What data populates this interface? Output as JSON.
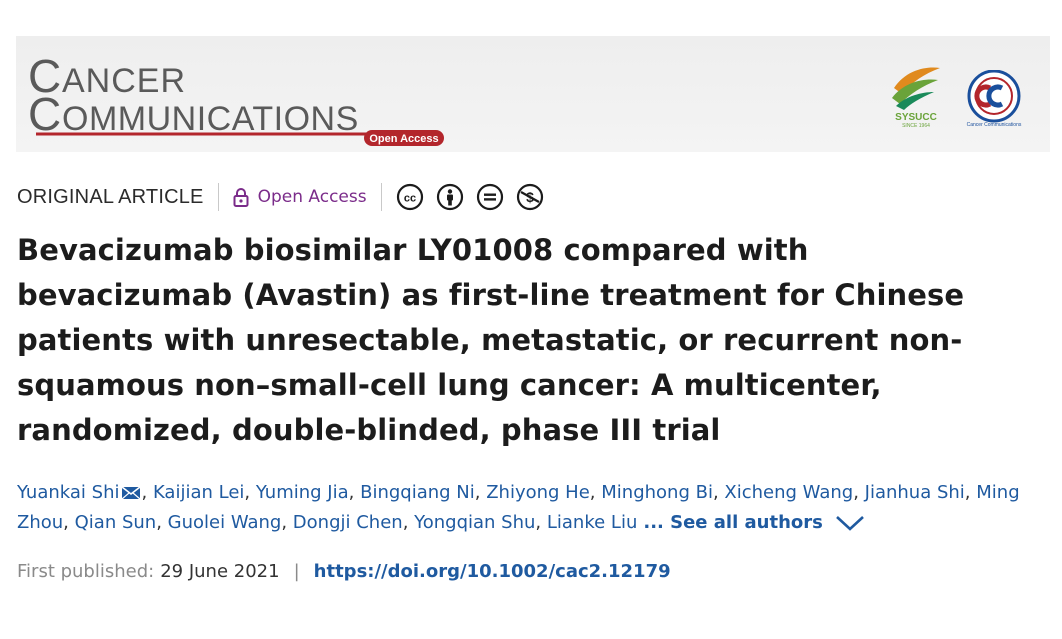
{
  "banner": {
    "logo_line1": "CANCER",
    "logo_line2": "COMMUNICATIONS",
    "logo_badge": "Open Access",
    "partner1_text": "SYSUCC",
    "partner1_sub": "SINCE 1964",
    "partner2_text": "Cancer Communications",
    "colors": {
      "brand_red": "#b3262c",
      "logo_gray": "#5a5a5a",
      "partner_blue": "#1a4f9c",
      "partner_green": "#6aa33a",
      "partner_orange": "#e08a1e"
    }
  },
  "meta": {
    "article_type": "ORIGINAL ARTICLE",
    "open_access": "Open Access",
    "license_icons": [
      "cc-icon",
      "by-icon",
      "nd-icon",
      "nc-icon"
    ]
  },
  "article": {
    "title": "Bevacizumab biosimilar LY01008 compared with bevacizumab (Avastin) as first-line treatment for Chinese patients with unresectable, metastatic, or recurrent non-squamous non–small-cell lung cancer: A multicenter, randomized, double-blinded, phase III trial"
  },
  "authors": {
    "list": [
      "Yuankai Shi",
      "Kaijian Lei",
      "Yuming Jia",
      "Bingqiang Ni",
      "Zhiyong He",
      "Minghong Bi",
      "Xicheng Wang",
      "Jianhua Shi",
      "Ming Zhou",
      "Qian Sun",
      "Guolei Wang",
      "Dongji Chen",
      "Yongqian Shu",
      "Lianke Liu"
    ],
    "see_all": "... See all authors"
  },
  "publication": {
    "label": "First published:",
    "date": "29 June 2021",
    "separator": "|",
    "doi": "https://doi.org/10.1002/cac2.12179"
  }
}
